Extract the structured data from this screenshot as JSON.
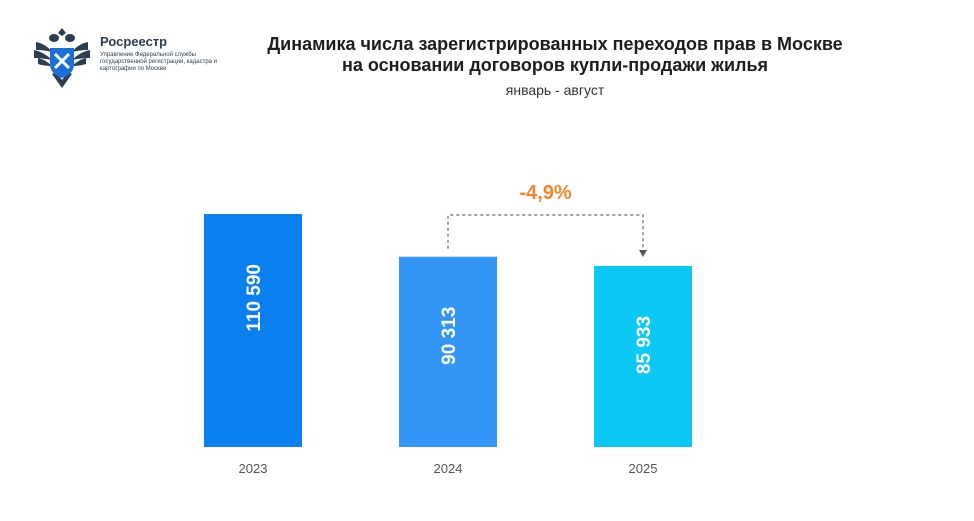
{
  "header": {
    "brand": "Росреестр",
    "org": "Управление Федеральной службы государственной регистрации, кадастра и картографии по Москве",
    "title_line1": "Динамика числа зарегистрированных переходов прав в Москве",
    "title_line2": "на основании договоров купли-продажи жилья",
    "period": "январь - август"
  },
  "chart_data": {
    "type": "bar",
    "title": "Динамика числа зарегистрированных переходов прав в Москве на основании договоров купли-продажи жилья",
    "subtitle": "январь - август",
    "categories": [
      "2023",
      "2024",
      "2025"
    ],
    "values": [
      110590,
      90313,
      85933
    ],
    "value_labels": [
      "110 590",
      "90 313",
      "85 933"
    ],
    "bar_colors": [
      "#0a80f0",
      "#3396f7",
      "#0cc8f5"
    ],
    "annotation": {
      "text": "-4,9%",
      "from": "2024",
      "to": "2025",
      "color": "#f7862a"
    },
    "ylim": [
      0,
      110590
    ],
    "grid": false
  }
}
